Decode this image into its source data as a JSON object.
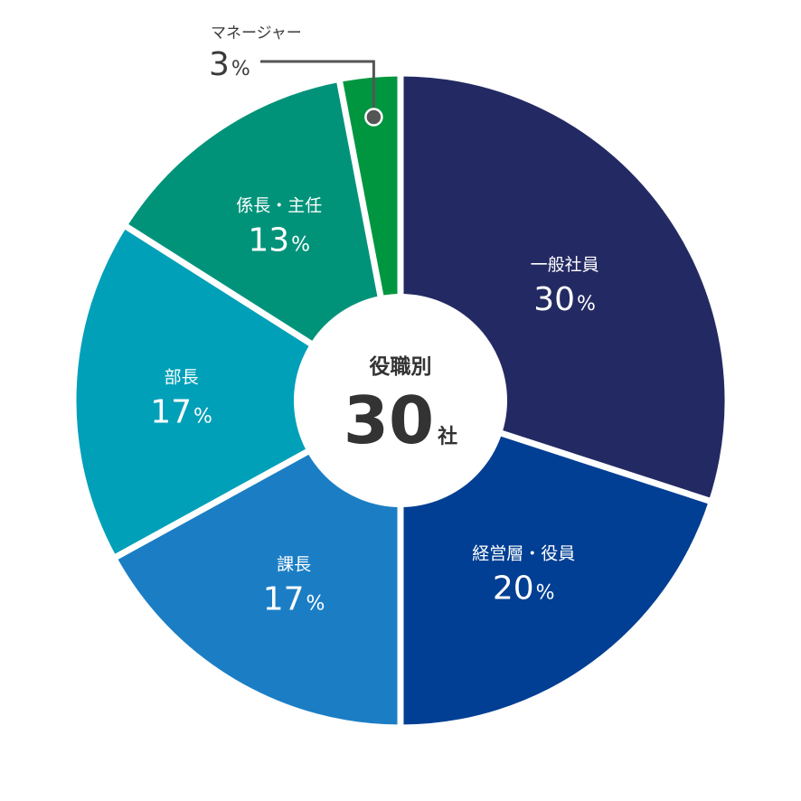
{
  "chart_data": {
    "type": "pie",
    "center": {
      "title": "役職別",
      "count": "30",
      "unit": "社"
    },
    "percent_symbol": "%",
    "slices": [
      {
        "name": "一般社員",
        "value": 30,
        "color": "#232a63"
      },
      {
        "name": "経営層・役員",
        "value": 20,
        "color": "#003f93"
      },
      {
        "name": "課長",
        "value": 17,
        "color": "#1b7ec5"
      },
      {
        "name": "部長",
        "value": 17,
        "color": "#00a0b9"
      },
      {
        "name": "係長・主任",
        "value": 13,
        "color": "#00937a"
      },
      {
        "name": "マネージャー",
        "value": 3,
        "color": "#009640"
      }
    ]
  }
}
